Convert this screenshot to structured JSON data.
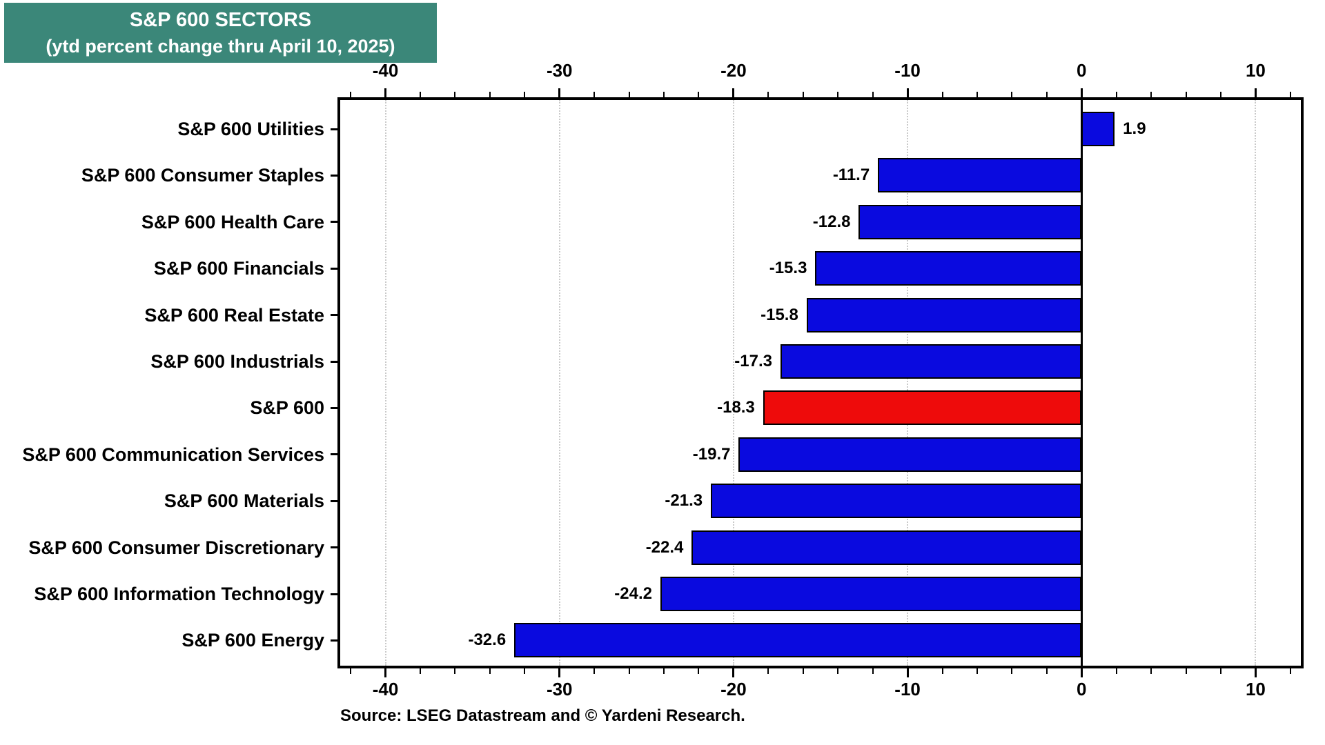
{
  "title": {
    "line1": "S&P 600 SECTORS",
    "line2": "(ytd percent change thru April 10, 2025)"
  },
  "source": "Source: LSEG Datastream and © Yardeni Research.",
  "colors": {
    "title_bg": "#3B8779",
    "title_fg": "#FFFFFF",
    "bar_blue": "#0A0ADF",
    "bar_red": "#EE0B0B",
    "axis": "#000000",
    "gridline": "#C9C9C9",
    "background": "#FFFFFF"
  },
  "chart_data": {
    "type": "bar",
    "orientation": "horizontal",
    "title": "S&P 600 SECTORS (ytd percent change thru April 10, 2025)",
    "categories": [
      "S&P 600 Utilities",
      "S&P 600 Consumer Staples",
      "S&P 600 Health Care",
      "S&P 600 Financials",
      "S&P 600 Real Estate",
      "S&P 600 Industrials",
      "S&P 600",
      "S&P 600 Communication Services",
      "S&P 600 Materials",
      "S&P 600 Consumer Discretionary",
      "S&P 600 Information Technology",
      "S&P 600 Energy"
    ],
    "values": [
      1.9,
      -11.7,
      -12.8,
      -15.3,
      -15.8,
      -17.3,
      -18.3,
      -19.7,
      -21.3,
      -22.4,
      -24.2,
      -32.6
    ],
    "value_labels": [
      "1.9",
      "-11.7",
      "-12.8",
      "-15.3",
      "-15.8",
      "-17.3",
      "-18.3",
      "-19.7",
      "-21.3",
      "-22.4",
      "-24.2",
      "-32.6"
    ],
    "highlight_index": 6,
    "xlabel": "",
    "ylabel": "",
    "xlim": [
      -42.6,
      12.6
    ],
    "x_major_ticks": [
      -40,
      -30,
      -20,
      -10,
      0,
      10
    ],
    "x_minor_step": 2,
    "grid": "dotted-vertical-at-major-ticks",
    "axis_ticks_mirrored_top_and_bottom": true,
    "zero_line": true,
    "legend": "none"
  }
}
